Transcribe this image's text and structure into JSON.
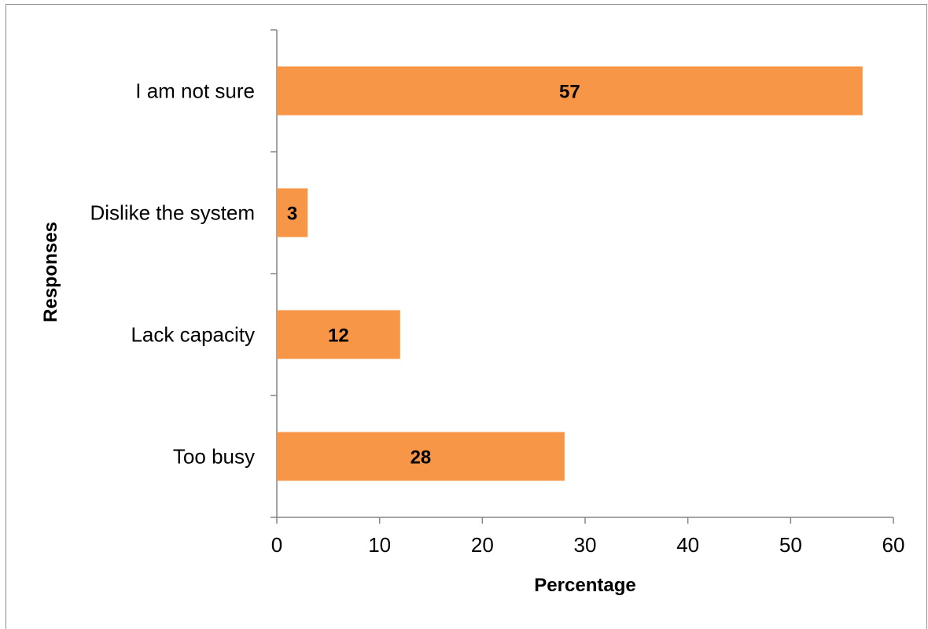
{
  "chart_data": {
    "type": "bar",
    "orientation": "horizontal",
    "categories": [
      "Too busy",
      "Lack capacity",
      "Dislike the system",
      "I am not sure"
    ],
    "values": [
      28,
      12,
      3,
      57
    ],
    "data_labels": [
      "28",
      "12",
      "3",
      "57"
    ],
    "bar_color": "#F79646",
    "xlabel": "Percentage",
    "ylabel": "Responses",
    "xlim": [
      0,
      60
    ],
    "xticks": [
      0,
      10,
      20,
      30,
      40,
      50,
      60
    ],
    "xtick_labels": [
      "0",
      "10",
      "20",
      "30",
      "40",
      "50",
      "60"
    ],
    "grid": false,
    "legend": "none"
  }
}
